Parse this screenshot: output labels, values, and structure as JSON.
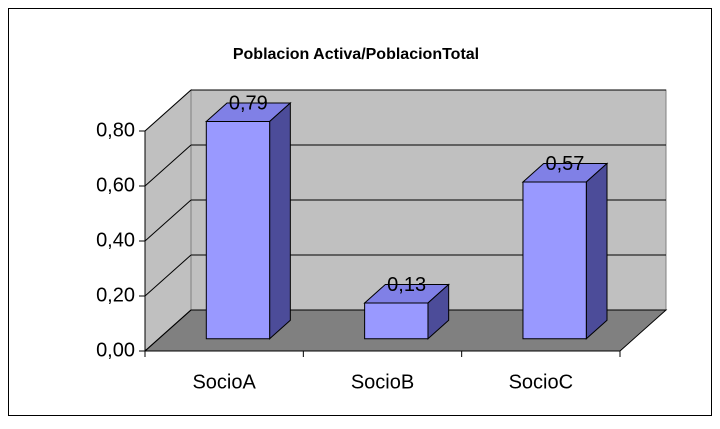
{
  "chart_data": {
    "type": "bar3d",
    "title": "Poblacion Activa/PoblacionTotal",
    "categories": [
      "SocioA",
      "SocioB",
      "SocioC"
    ],
    "values": [
      0.79,
      0.13,
      0.57
    ],
    "value_labels": [
      "0,79",
      "0,13",
      "0,57"
    ],
    "color": "#9999ff",
    "ylim": [
      0,
      0.8
    ],
    "yticks": [
      {
        "value": 0,
        "label": "0,00"
      },
      {
        "value": 0.2,
        "label": "0,20"
      },
      {
        "value": 0.4,
        "label": "0,40"
      },
      {
        "value": 0.6,
        "label": "0,60"
      },
      {
        "value": 0.8,
        "label": "0,80"
      }
    ],
    "grid": true
  }
}
